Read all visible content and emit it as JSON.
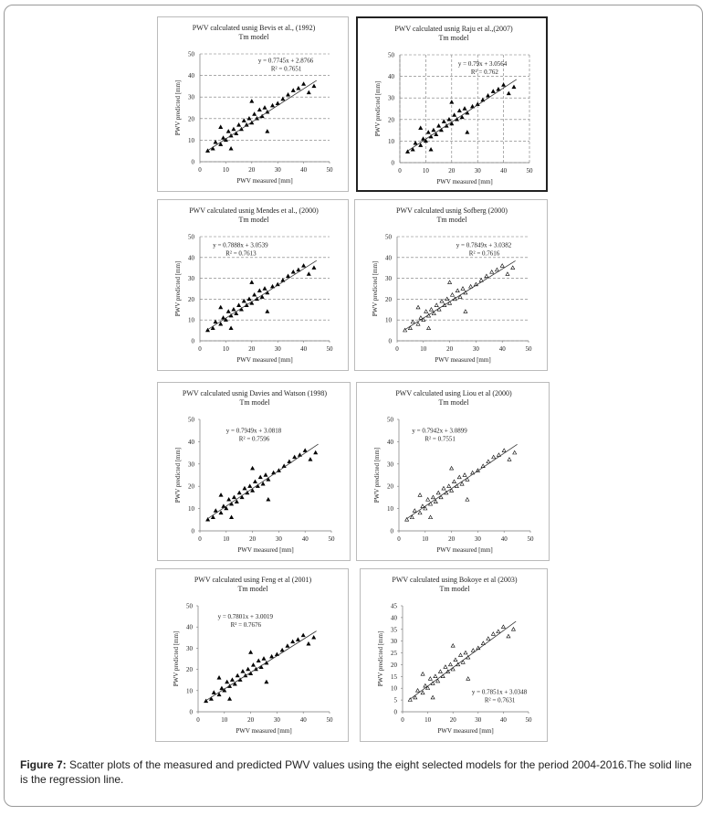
{
  "chart_data": [
    {
      "type": "scatter",
      "title": "PWV calculated usnig Bevis et al., (1992)",
      "subtitle": "Tm model",
      "xlabel": "PWV measured [mm]",
      "ylabel": "PWV predicted [mm]",
      "annotations": [
        "y = 0.7745x + 2.8766",
        "R² = 0.7651"
      ],
      "marker": "triangle",
      "marker_fill": "#000",
      "color": "#000",
      "grid": "y",
      "xlim": [
        0,
        50
      ],
      "ylim": [
        0,
        50
      ],
      "xticks": [
        0,
        10,
        20,
        30,
        40,
        50
      ],
      "yticks": [
        0,
        10,
        20,
        30,
        40,
        50
      ],
      "x": [
        3,
        5,
        6,
        8,
        9,
        10,
        11,
        12,
        13,
        14,
        15,
        16,
        17,
        18,
        19,
        20,
        21,
        22,
        23,
        24,
        25,
        26,
        28,
        30,
        32,
        34,
        36,
        38,
        40,
        42,
        44,
        12,
        20,
        26,
        8
      ],
      "y": [
        5,
        6,
        9,
        8,
        11,
        10,
        14,
        12,
        15,
        13,
        17,
        15,
        19,
        17,
        20,
        18,
        22,
        20,
        24,
        21,
        25,
        23,
        26,
        27,
        29,
        31,
        33,
        34,
        36,
        32,
        35,
        6,
        28,
        14,
        16
      ],
      "trend": {
        "x": [
          3,
          45
        ],
        "y": [
          5.2,
          37.7
        ]
      }
    },
    {
      "type": "scatter",
      "title": "PWV calculated usnig Raju et al.,(2007)",
      "subtitle": "Tm model",
      "xlabel": "PWV measured [mm]",
      "ylabel": "PWV predicted [mm]",
      "annotations": [
        "y = 0.79x + 3.0564",
        "R² = 0.762"
      ],
      "marker": "triangle",
      "marker_fill": "#000",
      "color": "#000",
      "grid": "both",
      "xlim": [
        0,
        50
      ],
      "ylim": [
        0,
        50
      ],
      "xticks": [
        0,
        10,
        20,
        30,
        40,
        50
      ],
      "yticks": [
        0,
        10,
        20,
        30,
        40,
        50
      ],
      "x": [
        3,
        5,
        6,
        8,
        9,
        10,
        11,
        12,
        13,
        14,
        15,
        16,
        17,
        18,
        19,
        20,
        21,
        22,
        23,
        24,
        25,
        26,
        28,
        30,
        32,
        34,
        36,
        38,
        40,
        42,
        44,
        12,
        20,
        26,
        8
      ],
      "y": [
        5,
        6,
        9,
        8,
        11,
        10,
        14,
        12,
        15,
        13,
        17,
        15,
        19,
        17,
        20,
        18,
        22,
        20,
        24,
        21,
        25,
        23,
        26,
        27,
        29,
        31,
        33,
        34,
        36,
        32,
        35,
        6,
        28,
        14,
        16
      ],
      "trend": {
        "x": [
          3,
          45
        ],
        "y": [
          5.4,
          38.6
        ]
      }
    },
    {
      "type": "scatter",
      "title": "PWV calculated usnig Mendes et al., (2000)",
      "subtitle": "Tm model",
      "xlabel": "PWV measured [mm]",
      "ylabel": "PWV predicted [mm]",
      "annotations": [
        "y = 0.7888x + 3.0539",
        "R² = 0.7613"
      ],
      "marker": "triangle",
      "marker_fill": "#000",
      "color": "#000",
      "grid": "y",
      "xlim": [
        0,
        50
      ],
      "ylim": [
        0,
        50
      ],
      "xticks": [
        0,
        10,
        20,
        30,
        40,
        50
      ],
      "yticks": [
        0,
        10,
        20,
        30,
        40,
        50
      ],
      "x": [
        3,
        5,
        6,
        8,
        9,
        10,
        11,
        12,
        13,
        14,
        15,
        16,
        17,
        18,
        19,
        20,
        21,
        22,
        23,
        24,
        25,
        26,
        28,
        30,
        32,
        34,
        36,
        38,
        40,
        42,
        44,
        12,
        20,
        26,
        8
      ],
      "y": [
        5,
        6,
        9,
        8,
        11,
        10,
        14,
        12,
        15,
        13,
        17,
        15,
        19,
        17,
        20,
        18,
        22,
        20,
        24,
        21,
        25,
        23,
        26,
        27,
        29,
        31,
        33,
        34,
        36,
        32,
        35,
        6,
        28,
        14,
        16
      ],
      "trend": {
        "x": [
          3,
          45
        ],
        "y": [
          5.4,
          38.5
        ]
      }
    },
    {
      "type": "scatter",
      "title": "PWV calculated usnig Sofberg (2000)",
      "subtitle": "Tm model",
      "xlabel": "PWV measured [mm]",
      "ylabel": "PWV predicted [mm]",
      "annotations": [
        "y = 0.7849x + 3.0382",
        "R² = 0.7616"
      ],
      "marker": "triangle",
      "marker_fill": "none",
      "color": "#000",
      "grid": "y",
      "xlim": [
        0,
        50
      ],
      "ylim": [
        0,
        50
      ],
      "xticks": [
        0,
        10,
        20,
        30,
        40,
        50
      ],
      "yticks": [
        0,
        10,
        20,
        30,
        40,
        50
      ],
      "x": [
        3,
        5,
        6,
        8,
        9,
        10,
        11,
        12,
        13,
        14,
        15,
        16,
        17,
        18,
        19,
        20,
        21,
        22,
        23,
        24,
        25,
        26,
        28,
        30,
        32,
        34,
        36,
        38,
        40,
        42,
        44,
        12,
        20,
        26,
        8
      ],
      "y": [
        5,
        6,
        9,
        8,
        11,
        10,
        14,
        12,
        15,
        13,
        17,
        15,
        19,
        17,
        20,
        18,
        22,
        20,
        24,
        21,
        25,
        23,
        26,
        27,
        29,
        31,
        33,
        34,
        36,
        32,
        35,
        6,
        28,
        14,
        16
      ],
      "trend": {
        "x": [
          3,
          45
        ],
        "y": [
          5.4,
          38.4
        ]
      }
    },
    {
      "type": "scatter",
      "title": "PWV calculated usnig Davies and Watson (1998)",
      "subtitle": "Tm model",
      "xlabel": "PWV measured [mm]",
      "ylabel": "PWV predicted [mm]",
      "annotations": [
        "y = 0.7949x + 3.0818",
        "R² = 0.7596"
      ],
      "marker": "triangle",
      "marker_fill": "#000",
      "color": "#000",
      "grid": "none",
      "xlim": [
        0,
        50
      ],
      "ylim": [
        0,
        50
      ],
      "xticks": [
        0,
        10,
        20,
        30,
        40,
        50
      ],
      "yticks": [
        0,
        10,
        20,
        30,
        40,
        50
      ],
      "x": [
        3,
        5,
        6,
        8,
        9,
        10,
        11,
        12,
        13,
        14,
        15,
        16,
        17,
        18,
        19,
        20,
        21,
        22,
        23,
        24,
        25,
        26,
        28,
        30,
        32,
        34,
        36,
        38,
        40,
        42,
        44,
        12,
        20,
        26,
        8
      ],
      "y": [
        5,
        6,
        9,
        8,
        11,
        10,
        14,
        12,
        15,
        13,
        17,
        15,
        19,
        17,
        20,
        18,
        22,
        20,
        24,
        21,
        25,
        23,
        26,
        27,
        29,
        31,
        33,
        34,
        36,
        32,
        35,
        6,
        28,
        14,
        16
      ],
      "trend": {
        "x": [
          3,
          45
        ],
        "y": [
          5.5,
          38.9
        ]
      }
    },
    {
      "type": "scatter",
      "title": "PWV calculated using Liou et al (2000)",
      "subtitle": "Tm model",
      "xlabel": "PWV measured [mm]",
      "ylabel": "PWV predicted [mm]",
      "annotations": [
        "y = 0.7942x + 3.0899",
        "R² = 0.7551"
      ],
      "marker": "triangle",
      "marker_fill": "none",
      "color": "#000",
      "grid": "none",
      "xlim": [
        0,
        50
      ],
      "ylim": [
        0,
        50
      ],
      "xticks": [
        0,
        10,
        20,
        30,
        40,
        50
      ],
      "yticks": [
        0,
        10,
        20,
        30,
        40,
        50
      ],
      "x": [
        3,
        5,
        6,
        8,
        9,
        10,
        11,
        12,
        13,
        14,
        15,
        16,
        17,
        18,
        19,
        20,
        21,
        22,
        23,
        24,
        25,
        26,
        28,
        30,
        32,
        34,
        36,
        38,
        40,
        42,
        44,
        12,
        20,
        26,
        8
      ],
      "y": [
        5,
        6,
        9,
        8,
        11,
        10,
        14,
        12,
        15,
        13,
        17,
        15,
        19,
        17,
        20,
        18,
        22,
        20,
        24,
        21,
        25,
        23,
        26,
        27,
        29,
        31,
        33,
        34,
        36,
        32,
        35,
        6,
        28,
        14,
        16
      ],
      "trend": {
        "x": [
          3,
          45
        ],
        "y": [
          5.5,
          38.8
        ]
      }
    },
    {
      "type": "scatter",
      "title": "PWV calculated using Feng et al (2001)",
      "subtitle": "Tm model",
      "xlabel": "PWV measured [mm]",
      "ylabel": "PWV predicted [mm]",
      "annotations": [
        "y = 0.7801x + 3.0019",
        "R² = 0.7676"
      ],
      "marker": "triangle",
      "marker_fill": "#000",
      "color": "#000",
      "grid": "none",
      "xlim": [
        0,
        50
      ],
      "ylim": [
        0,
        50
      ],
      "xticks": [
        0,
        10,
        20,
        30,
        40,
        50
      ],
      "yticks": [
        0,
        10,
        20,
        30,
        40,
        50
      ],
      "x": [
        3,
        5,
        6,
        8,
        9,
        10,
        11,
        12,
        13,
        14,
        15,
        16,
        17,
        18,
        19,
        20,
        21,
        22,
        23,
        24,
        25,
        26,
        28,
        30,
        32,
        34,
        36,
        38,
        40,
        42,
        44,
        12,
        20,
        26,
        8
      ],
      "y": [
        5,
        6,
        9,
        8,
        11,
        10,
        14,
        12,
        15,
        13,
        17,
        15,
        19,
        17,
        20,
        18,
        22,
        20,
        24,
        21,
        25,
        23,
        26,
        27,
        29,
        31,
        33,
        34,
        36,
        32,
        35,
        6,
        28,
        14,
        16
      ],
      "trend": {
        "x": [
          3,
          45
        ],
        "y": [
          5.3,
          38.1
        ]
      }
    },
    {
      "type": "scatter",
      "title": "PWV calculated using Bokoye et al (2003)",
      "subtitle": "Tm model",
      "xlabel": "PWV measured [mm]",
      "ylabel": "PWV predicted [mm]",
      "annotations": [
        "y = 0.7851x + 3.0348",
        "R² = 0.7631"
      ],
      "marker": "triangle",
      "marker_fill": "none",
      "color": "#000",
      "grid": "none",
      "xlim": [
        0,
        50
      ],
      "ylim": [
        0,
        45
      ],
      "xticks": [
        0,
        10,
        20,
        30,
        40,
        50
      ],
      "yticks": [
        0,
        5,
        10,
        15,
        20,
        25,
        30,
        35,
        40,
        45
      ],
      "x": [
        3,
        5,
        6,
        8,
        9,
        10,
        11,
        12,
        13,
        14,
        15,
        16,
        17,
        18,
        19,
        20,
        21,
        22,
        23,
        24,
        25,
        26,
        28,
        30,
        32,
        34,
        36,
        38,
        40,
        42,
        44,
        12,
        20,
        26,
        8
      ],
      "y": [
        5,
        6,
        9,
        8,
        11,
        10,
        14,
        12,
        15,
        13,
        17,
        15,
        19,
        17,
        20,
        18,
        22,
        20,
        24,
        21,
        25,
        23,
        26,
        27,
        29,
        31,
        33,
        34,
        36,
        32,
        35,
        6,
        28,
        14,
        16
      ],
      "trend": {
        "x": [
          3,
          45
        ],
        "y": [
          5.4,
          38.4
        ]
      }
    }
  ],
  "caption": {
    "label": "Figure 7:",
    "text": "Scatter plots of the measured and predicted PWV values using the eight selected models for the period 2004-2016.The solid line is the regression line."
  }
}
